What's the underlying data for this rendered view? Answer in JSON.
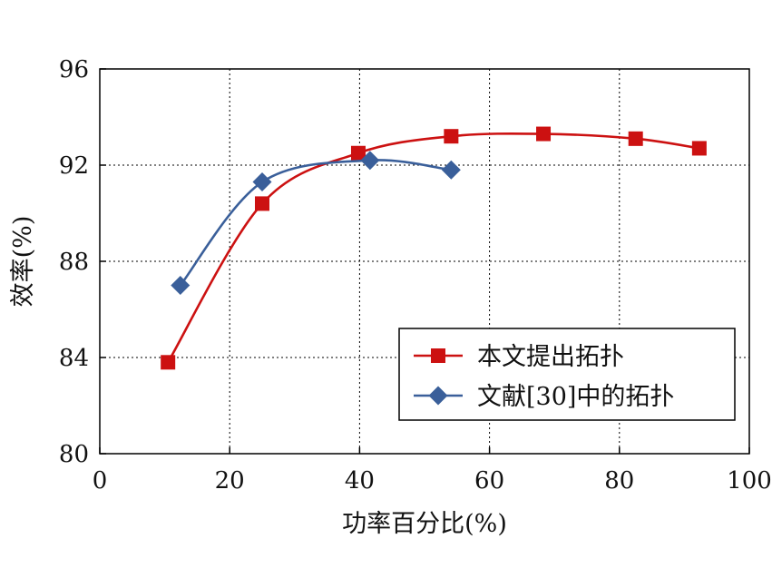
{
  "chart_data": {
    "type": "line",
    "title": "",
    "xlabel": "功率百分比(%)",
    "ylabel": "效率(%)",
    "xlim": [
      0,
      100
    ],
    "ylim": [
      80,
      96
    ],
    "xticks": [
      0,
      20,
      40,
      60,
      80,
      100
    ],
    "yticks": [
      80,
      84,
      88,
      92,
      96
    ],
    "grid": true,
    "legend_position": "bottom-right",
    "series": [
      {
        "name": "本文提出拓扑",
        "color": "#cc1111",
        "marker": "square",
        "x": [
          10.5,
          25.0,
          39.8,
          54.1,
          68.3,
          82.5,
          92.3
        ],
        "y": [
          83.8,
          90.4,
          92.5,
          93.2,
          93.3,
          93.1,
          92.7
        ]
      },
      {
        "name": "文献[30]中的拓扑",
        "color": "#3a5f9a",
        "marker": "diamond",
        "x": [
          12.4,
          25.0,
          41.6,
          54.1
        ],
        "y": [
          87.0,
          91.3,
          92.2,
          91.8
        ]
      }
    ]
  }
}
